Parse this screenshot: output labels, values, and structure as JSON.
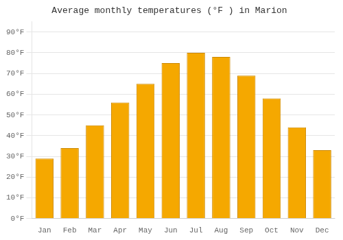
{
  "chart_data": {
    "type": "bar",
    "title": "Average monthly temperatures (°F ) in Marion",
    "categories": [
      "Jan",
      "Feb",
      "Mar",
      "Apr",
      "May",
      "Jun",
      "Jul",
      "Aug",
      "Sep",
      "Oct",
      "Nov",
      "Dec"
    ],
    "values": [
      29,
      34,
      45,
      56,
      65,
      75,
      80,
      78,
      69,
      58,
      44,
      33
    ],
    "color": "#F5A800",
    "ylim": [
      0,
      95
    ],
    "yticks": [
      {
        "value": 0,
        "label": "0°F"
      },
      {
        "value": 10,
        "label": "10°F"
      },
      {
        "value": 20,
        "label": "20°F"
      },
      {
        "value": 30,
        "label": "30°F"
      },
      {
        "value": 40,
        "label": "40°F"
      },
      {
        "value": 50,
        "label": "50°F"
      },
      {
        "value": 60,
        "label": "60°F"
      },
      {
        "value": 70,
        "label": "70°F"
      },
      {
        "value": 80,
        "label": "80°F"
      },
      {
        "value": 90,
        "label": "90°F"
      }
    ],
    "grid": true
  }
}
